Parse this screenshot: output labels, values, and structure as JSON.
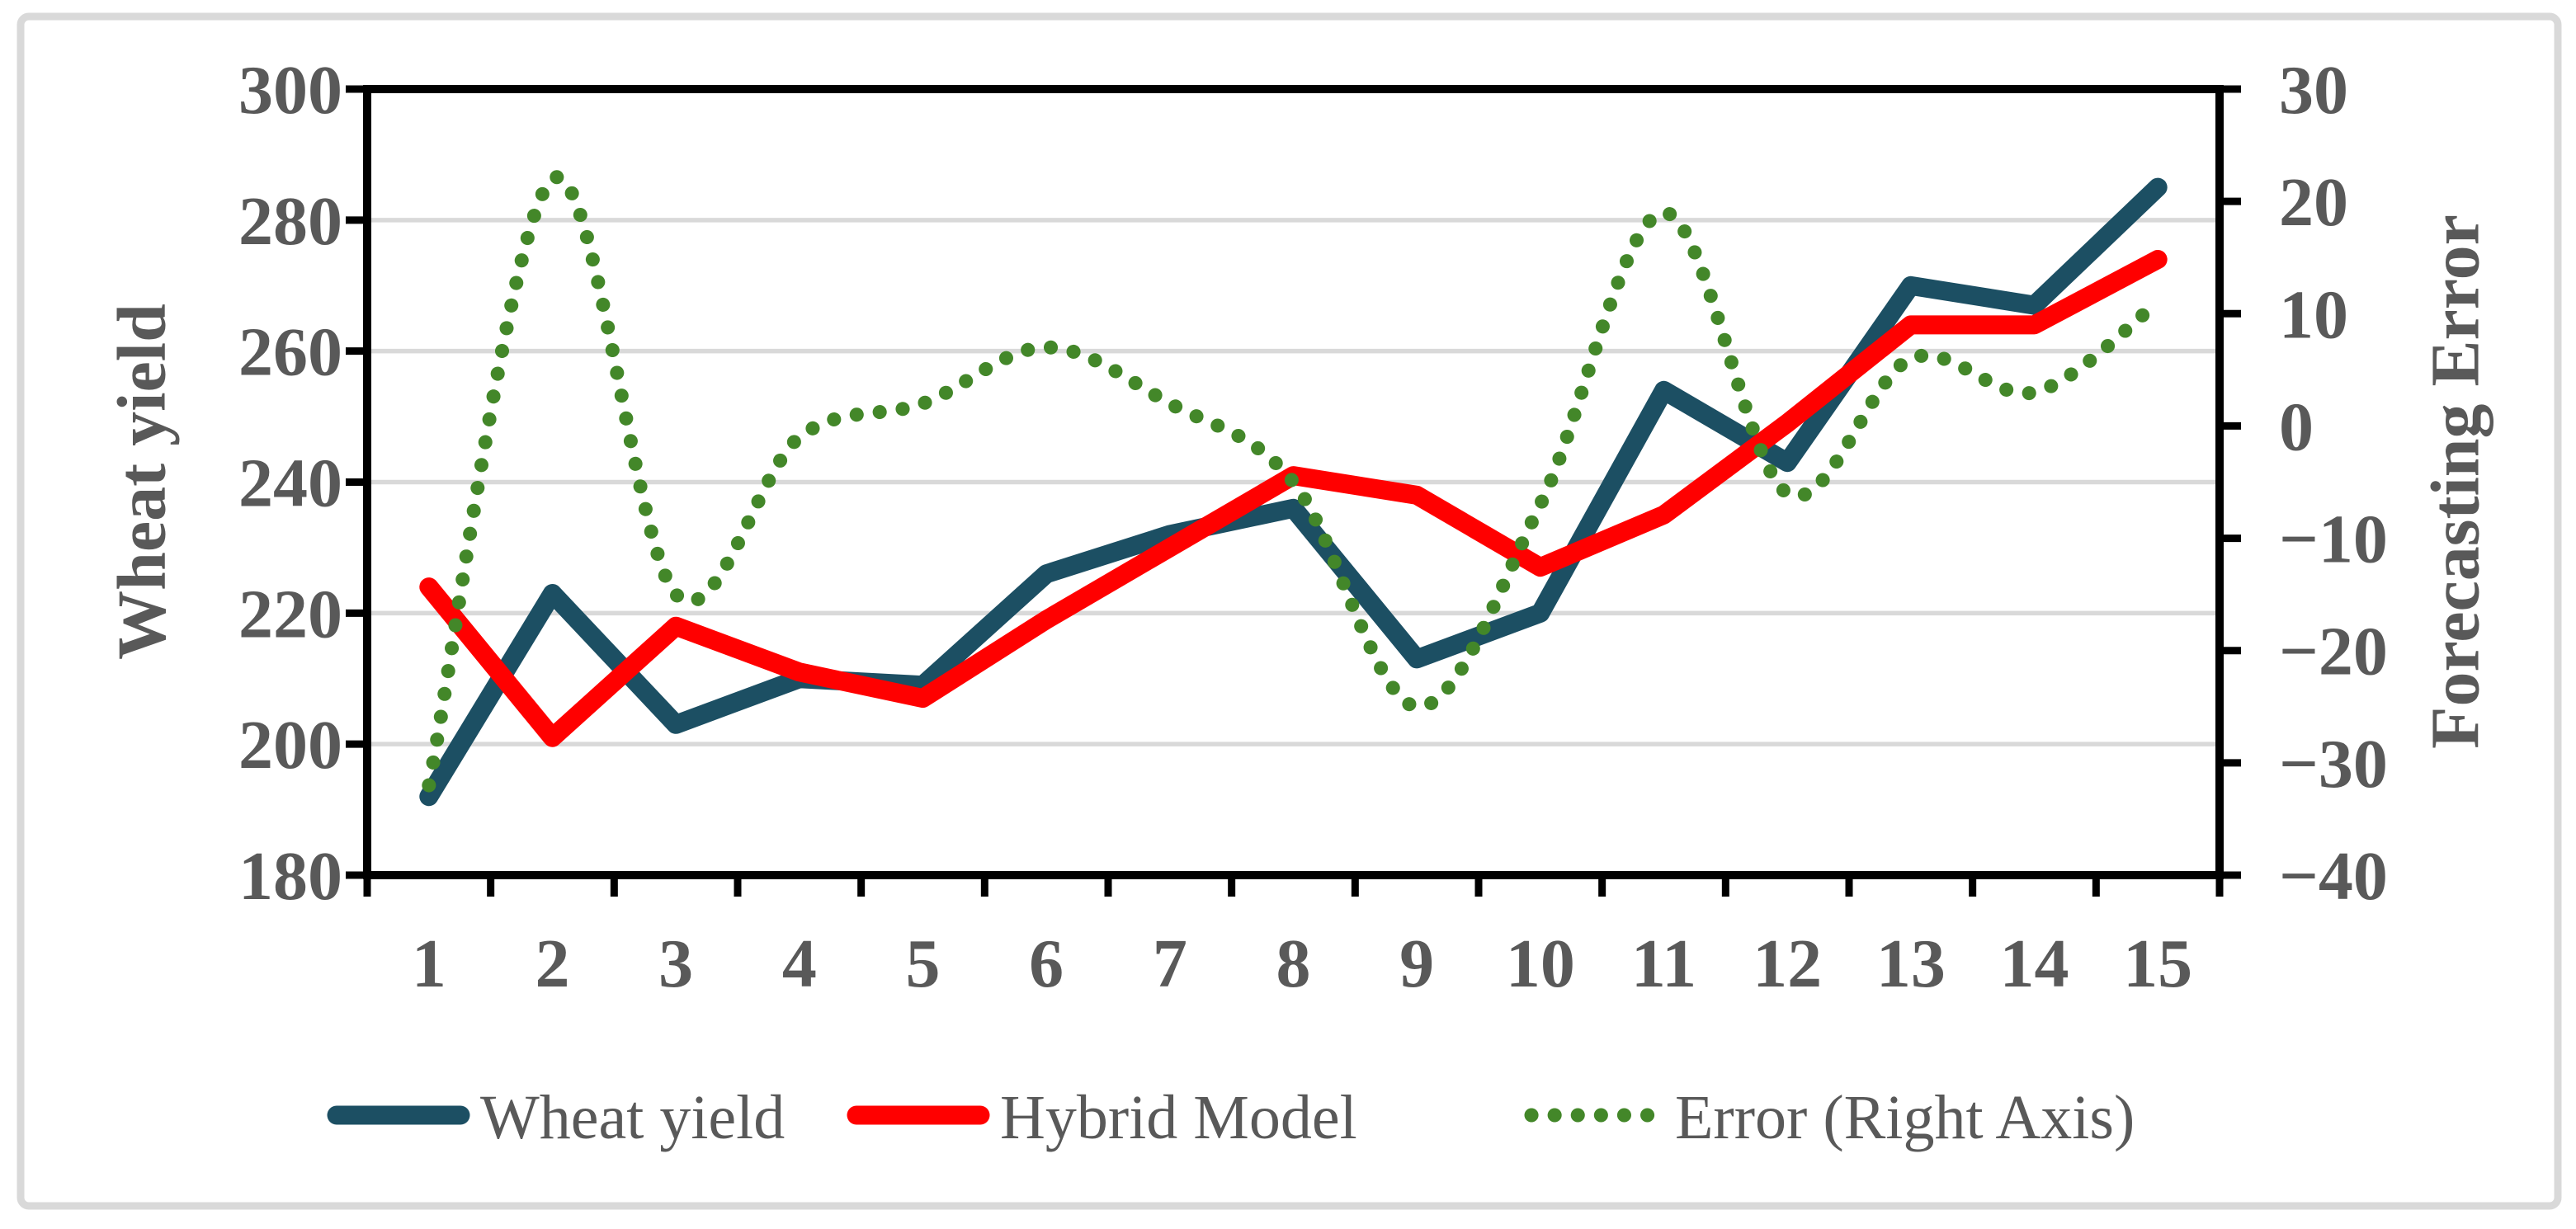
{
  "chart_data": {
    "type": "line",
    "title": "",
    "x": [
      "1",
      "2",
      "3",
      "4",
      "5",
      "6",
      "7",
      "8",
      "9",
      "10",
      "11",
      "12",
      "13",
      "14",
      "15"
    ],
    "series": [
      {
        "name": "Wheat yield",
        "axis": "left",
        "style": "solid",
        "color": "#1C4F63",
        "values": [
          192,
          223,
          203,
          210,
          209,
          226,
          232,
          236,
          213,
          220,
          254,
          243,
          270,
          267,
          285
        ]
      },
      {
        "name": "Hybrid Model",
        "axis": "left",
        "style": "solid",
        "color": "#FF0000",
        "values": [
          224,
          201,
          218,
          211,
          207,
          219,
          230,
          241,
          238,
          227,
          235,
          249,
          264,
          264,
          274
        ]
      },
      {
        "name": "Error (Right Axis)",
        "axis": "right",
        "style": "dotted",
        "smooth": true,
        "color": "#438729",
        "values": [
          -32,
          22,
          -15,
          -1,
          2,
          7,
          2,
          -5,
          -25,
          -7,
          19,
          -6,
          6,
          3,
          11
        ]
      }
    ],
    "left_axis": {
      "title": "Wheat yield",
      "min": 180,
      "max": 300,
      "step": 20,
      "tick_labels": [
        "300",
        "280",
        "260",
        "240",
        "220",
        "200",
        "180"
      ],
      "tick_values": [
        300,
        280,
        260,
        240,
        220,
        200,
        180
      ]
    },
    "right_axis": {
      "title": "Forecasting Error",
      "min": -40,
      "max": 30,
      "step": 10,
      "tick_labels": [
        "30",
        "20",
        "10",
        "0",
        "-10",
        "-20",
        "-30",
        "-40"
      ],
      "tick_values": [
        30,
        20,
        10,
        0,
        -10,
        -20,
        -30,
        -40
      ]
    },
    "grid": true,
    "legend_position": "bottom"
  },
  "styles": {
    "text_color": "#595959",
    "grid_color": "#D9D9D9",
    "axis_color": "#000000",
    "frame_color": "#D9D9D9",
    "background": "#FFFFFF"
  }
}
